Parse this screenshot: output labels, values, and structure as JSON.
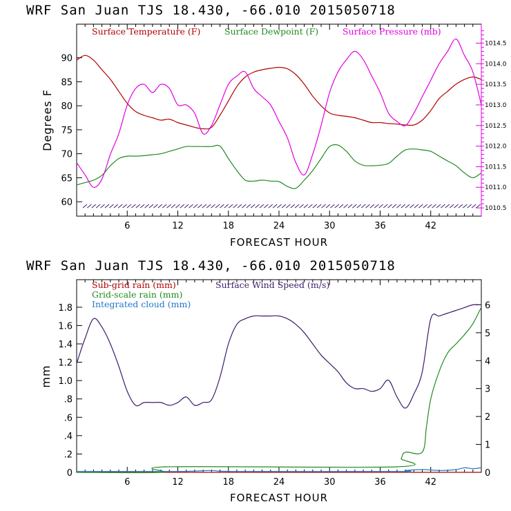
{
  "charts": [
    {
      "type": "line",
      "title": "WRF   San Juan TJS  18.430, -66.010  2015050718",
      "xlabel": "FORECAST HOUR",
      "ylabel": "Degrees F",
      "xlim": [
        0,
        48
      ],
      "ylim": [
        57,
        97
      ],
      "y2lim": [
        1010.3,
        1014.96
      ],
      "xticks": [
        "6",
        "12",
        "18",
        "24",
        "30",
        "36",
        "42"
      ],
      "yticks": [
        "60",
        "65",
        "70",
        "75",
        "80",
        "85",
        "90"
      ],
      "y2ticks": [
        "1010.5",
        "1011.0",
        "1011.5",
        "1012.0",
        "1012.5",
        "1013.0",
        "1013.5",
        "1014.0",
        "1014.5"
      ],
      "legend_position": "top",
      "series": [
        {
          "name": "Surface Temperature (F)",
          "color": "#b00000",
          "axis": "left",
          "points": [
            [
              0,
              89.5
            ],
            [
              1,
              90.5
            ],
            [
              2,
              89.5
            ],
            [
              3,
              87.5
            ],
            [
              4,
              85.5
            ],
            [
              5,
              83
            ],
            [
              6,
              80.5
            ],
            [
              7,
              78.8
            ],
            [
              8,
              78
            ],
            [
              9,
              77.5
            ],
            [
              10,
              77
            ],
            [
              11,
              77.2
            ],
            [
              12,
              76.5
            ],
            [
              13,
              76
            ],
            [
              14,
              75.5
            ],
            [
              15,
              75.2
            ],
            [
              16,
              75.5
            ],
            [
              17,
              78
            ],
            [
              18,
              81
            ],
            [
              19,
              84
            ],
            [
              20,
              86
            ],
            [
              21,
              87
            ],
            [
              22,
              87.5
            ],
            [
              23,
              87.8
            ],
            [
              24,
              88
            ],
            [
              25,
              87.7
            ],
            [
              26,
              86.5
            ],
            [
              27,
              84.5
            ],
            [
              28,
              82
            ],
            [
              29,
              80
            ],
            [
              30,
              78.5
            ],
            [
              31,
              78
            ],
            [
              32,
              77.8
            ],
            [
              33,
              77.5
            ],
            [
              34,
              77
            ],
            [
              35,
              76.5
            ],
            [
              36,
              76.5
            ],
            [
              37,
              76.3
            ],
            [
              38,
              76.2
            ],
            [
              39,
              76
            ],
            [
              40,
              76
            ],
            [
              41,
              77
            ],
            [
              42,
              79
            ],
            [
              43,
              81.5
            ],
            [
              44,
              83
            ],
            [
              45,
              84.5
            ],
            [
              46,
              85.5
            ],
            [
              47,
              86
            ],
            [
              48,
              85.5
            ]
          ]
        },
        {
          "name": "Surface Dewpoint (F)",
          "color": "#1f8a1f",
          "axis": "left",
          "points": [
            [
              0,
              63.5
            ],
            [
              1,
              64
            ],
            [
              2,
              64.5
            ],
            [
              3,
              65.5
            ],
            [
              4,
              67.5
            ],
            [
              5,
              69
            ],
            [
              6,
              69.5
            ],
            [
              7,
              69.5
            ],
            [
              8,
              69.6
            ],
            [
              9,
              69.8
            ],
            [
              10,
              70
            ],
            [
              11,
              70.5
            ],
            [
              12,
              71
            ],
            [
              13,
              71.5
            ],
            [
              14,
              71.5
            ],
            [
              15,
              71.5
            ],
            [
              16,
              71.5
            ],
            [
              17,
              71.6
            ],
            [
              18,
              69
            ],
            [
              19,
              66.5
            ],
            [
              20,
              64.5
            ],
            [
              21,
              64.3
            ],
            [
              22,
              64.5
            ],
            [
              23,
              64.3
            ],
            [
              24,
              64.2
            ],
            [
              25,
              63.2
            ],
            [
              26,
              62.8
            ],
            [
              27,
              64.5
            ],
            [
              28,
              66.5
            ],
            [
              29,
              69
            ],
            [
              30,
              71.5
            ],
            [
              31,
              71.8
            ],
            [
              32,
              70.5
            ],
            [
              33,
              68.5
            ],
            [
              34,
              67.6
            ],
            [
              35,
              67.5
            ],
            [
              36,
              67.6
            ],
            [
              37,
              68
            ],
            [
              38,
              69.5
            ],
            [
              39,
              70.8
            ],
            [
              40,
              71
            ],
            [
              41,
              70.8
            ],
            [
              42,
              70.5
            ],
            [
              43,
              69.5
            ],
            [
              44,
              68.5
            ],
            [
              45,
              67.5
            ],
            [
              46,
              66
            ],
            [
              47,
              65
            ],
            [
              48,
              66
            ]
          ]
        },
        {
          "name": "Surface Pressure (mb)",
          "color": "#e000e0",
          "axis": "right",
          "points": [
            [
              0,
              1011.6
            ],
            [
              1,
              1011.3
            ],
            [
              2,
              1011.0
            ],
            [
              3,
              1011.2
            ],
            [
              4,
              1011.8
            ],
            [
              5,
              1012.3
            ],
            [
              6,
              1013.0
            ],
            [
              7,
              1013.4
            ],
            [
              8,
              1013.5
            ],
            [
              9,
              1013.3
            ],
            [
              10,
              1013.5
            ],
            [
              11,
              1013.4
            ],
            [
              12,
              1013.0
            ],
            [
              13,
              1013.0
            ],
            [
              14,
              1012.8
            ],
            [
              15,
              1012.3
            ],
            [
              16,
              1012.5
            ],
            [
              17,
              1013.0
            ],
            [
              18,
              1013.5
            ],
            [
              19,
              1013.7
            ],
            [
              20,
              1013.8
            ],
            [
              21,
              1013.4
            ],
            [
              22,
              1013.2
            ],
            [
              23,
              1013.0
            ],
            [
              24,
              1012.6
            ],
            [
              25,
              1012.2
            ],
            [
              26,
              1011.6
            ],
            [
              27,
              1011.3
            ],
            [
              28,
              1011.8
            ],
            [
              29,
              1012.5
            ],
            [
              30,
              1013.3
            ],
            [
              31,
              1013.8
            ],
            [
              32,
              1014.1
            ],
            [
              33,
              1014.3
            ],
            [
              34,
              1014.1
            ],
            [
              35,
              1013.7
            ],
            [
              36,
              1013.3
            ],
            [
              37,
              1012.8
            ],
            [
              38,
              1012.6
            ],
            [
              39,
              1012.5
            ],
            [
              40,
              1012.8
            ],
            [
              41,
              1013.2
            ],
            [
              42,
              1013.6
            ],
            [
              43,
              1014.0
            ],
            [
              44,
              1014.3
            ],
            [
              45,
              1014.6
            ],
            [
              46,
              1014.2
            ],
            [
              47,
              1013.8
            ],
            [
              48,
              1013.0
            ]
          ]
        }
      ]
    },
    {
      "type": "line",
      "title": "WRF   San Juan TJS  18.430, -66.010  2015050718",
      "xlabel": "FORECAST HOUR",
      "ylabel": "mm",
      "xlim": [
        0,
        48
      ],
      "ylim": [
        0,
        2.1
      ],
      "y2lim": [
        0,
        6.9
      ],
      "xticks": [
        "6",
        "12",
        "18",
        "24",
        "30",
        "36",
        "42"
      ],
      "yticks": [
        "0",
        ".2",
        ".4",
        ".6",
        ".8",
        "1.0",
        "1.2",
        "1.4",
        "1.6",
        "1.8"
      ],
      "y2ticks": [
        "0",
        "1",
        "2",
        "3",
        "4",
        "5",
        "6"
      ],
      "legend_position": "top-left",
      "series": [
        {
          "name": "Sub-grid rain (mm)",
          "color": "#b00000",
          "axis": "left",
          "points": [
            [
              0,
              0
            ],
            [
              48,
              0
            ]
          ]
        },
        {
          "name": "Surface Wind Speed (m/s)",
          "color": "#3a1a6a",
          "axis": "right",
          "points": [
            [
              0,
              3.9
            ],
            [
              1,
              4.8
            ],
            [
              2,
              5.5
            ],
            [
              3,
              5.2
            ],
            [
              4,
              4.6
            ],
            [
              5,
              3.8
            ],
            [
              6,
              2.9
            ],
            [
              7,
              2.4
            ],
            [
              8,
              2.5
            ],
            [
              9,
              2.5
            ],
            [
              10,
              2.5
            ],
            [
              11,
              2.4
            ],
            [
              12,
              2.5
            ],
            [
              13,
              2.7
            ],
            [
              14,
              2.4
            ],
            [
              15,
              2.5
            ],
            [
              16,
              2.6
            ],
            [
              17,
              3.4
            ],
            [
              18,
              4.6
            ],
            [
              19,
              5.3
            ],
            [
              20,
              5.5
            ],
            [
              21,
              5.6
            ],
            [
              22,
              5.6
            ],
            [
              23,
              5.6
            ],
            [
              24,
              5.6
            ],
            [
              25,
              5.5
            ],
            [
              26,
              5.3
            ],
            [
              27,
              5.0
            ],
            [
              28,
              4.6
            ],
            [
              29,
              4.2
            ],
            [
              30,
              3.9
            ],
            [
              31,
              3.6
            ],
            [
              32,
              3.2
            ],
            [
              33,
              3.0
            ],
            [
              34,
              3.0
            ],
            [
              35,
              2.9
            ],
            [
              36,
              3.0
            ],
            [
              37,
              3.3
            ],
            [
              38,
              2.7
            ],
            [
              39,
              2.3
            ],
            [
              40,
              2.8
            ],
            [
              41,
              3.6
            ],
            [
              42,
              5.5
            ],
            [
              43,
              5.6
            ],
            [
              44,
              5.7
            ],
            [
              45,
              5.8
            ],
            [
              46,
              5.9
            ],
            [
              47,
              6.0
            ],
            [
              48,
              6.0
            ]
          ]
        },
        {
          "name": "Grid-scale rain (mm)",
          "color": "#1f8a1f",
          "axis": "left",
          "points": [
            [
              0,
              0
            ],
            [
              10,
              0
            ],
            [
              10.8,
              0.06
            ],
            [
              38,
              0.06
            ],
            [
              38.5,
              0.15
            ],
            [
              39,
              0.22
            ],
            [
              41,
              0.22
            ],
            [
              41.5,
              0.5
            ],
            [
              42,
              0.8
            ],
            [
              43,
              1.1
            ],
            [
              44,
              1.3
            ],
            [
              45,
              1.4
            ],
            [
              46,
              1.5
            ],
            [
              47,
              1.62
            ],
            [
              48,
              1.8
            ]
          ]
        },
        {
          "name": "Integrated cloud (mm)",
          "color": "#1e78c8",
          "axis": "left",
          "points": [
            [
              0,
              0.01
            ],
            [
              12,
              0.01
            ],
            [
              16,
              0.02
            ],
            [
              19,
              0.01
            ],
            [
              38,
              0.01
            ],
            [
              39,
              0.02
            ],
            [
              41,
              0.03
            ],
            [
              43,
              0.02
            ],
            [
              45,
              0.03
            ],
            [
              46,
              0.05
            ],
            [
              47,
              0.04
            ],
            [
              48,
              0.05
            ]
          ]
        }
      ]
    }
  ]
}
